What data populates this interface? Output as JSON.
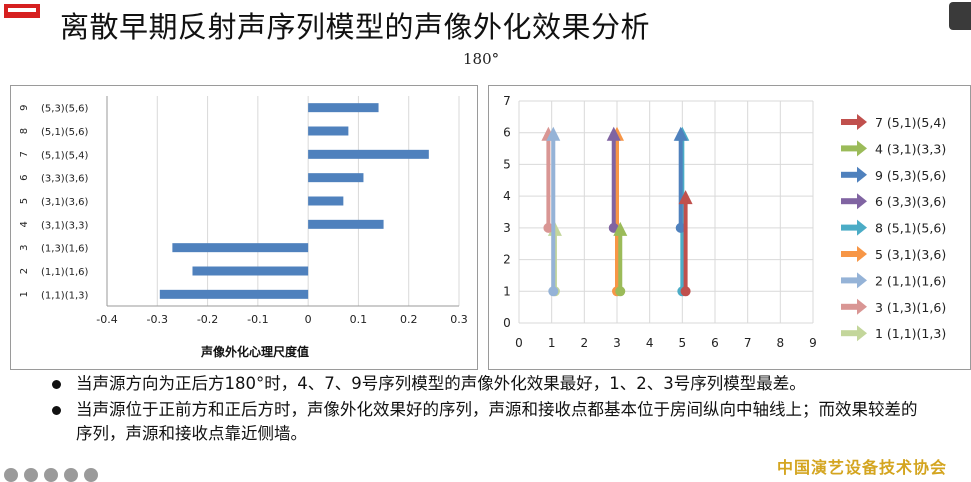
{
  "slide": {
    "title": "离散早期反射声序列模型的声像外化效果分析",
    "subtitle": "180°",
    "org": "中国演艺设备技术协会"
  },
  "bullets": [
    "当声源方向为正后方180°时，4、7、9号序列模型的声像外化效果最好，1、2、3号序列模型最差。",
    "当声源位于正前方和正后方时，声像外化效果好的序列，声源和接收点都基本位于房间纵向中轴线上；而效果较差的序列，声源和接收点靠近侧墙。"
  ],
  "colors": {
    "bar": "#4f81bd",
    "grid": "#d9d9d9",
    "org": "#d4a520"
  },
  "chart_data": [
    {
      "type": "bar",
      "orientation": "horizontal",
      "title": "",
      "xlabel": "声像外化心理尺度值",
      "ylabel": "",
      "xlim": [
        -0.4,
        0.3
      ],
      "xticks": [
        "-0.4",
        "-0.3",
        "-0.2",
        "-0.1",
        "0",
        "0.1",
        "0.2",
        "0.3"
      ],
      "categories": [
        {
          "num": "1",
          "label": "(1,1)(1,3)"
        },
        {
          "num": "2",
          "label": "(1,1)(1,6)"
        },
        {
          "num": "3",
          "label": "(1,3)(1,6)"
        },
        {
          "num": "4",
          "label": "(3,1)(3,3)"
        },
        {
          "num": "5",
          "label": "(3,1)(3,6)"
        },
        {
          "num": "6",
          "label": "(3,3)(3,6)"
        },
        {
          "num": "7",
          "label": "(5,1)(5,4)"
        },
        {
          "num": "8",
          "label": "(5,1)(5,6)"
        },
        {
          "num": "9",
          "label": "(5,3)(5,6)"
        }
      ],
      "values": [
        -0.295,
        -0.23,
        -0.27,
        0.15,
        0.07,
        0.11,
        0.24,
        0.08,
        0.14
      ]
    },
    {
      "type": "scatter",
      "title": "",
      "xlabel": "",
      "ylabel": "",
      "xlim": [
        0,
        9
      ],
      "ylim": [
        0,
        7
      ],
      "xticks": [
        "0",
        "1",
        "2",
        "3",
        "4",
        "5",
        "6",
        "7",
        "8",
        "9"
      ],
      "yticks": [
        "0",
        "1",
        "2",
        "3",
        "4",
        "5",
        "6",
        "7"
      ],
      "series": [
        {
          "name": "7 (5,1)(5,4)",
          "color": "#c0504d",
          "from": [
            5.1,
            1
          ],
          "to": [
            5.1,
            4
          ]
        },
        {
          "name": "4 (3,1)(3,3)",
          "color": "#9bbb59",
          "from": [
            3.1,
            1
          ],
          "to": [
            3.1,
            3
          ]
        },
        {
          "name": "9 (5,3)(5,6)",
          "color": "#4f81bd",
          "from": [
            4.95,
            3
          ],
          "to": [
            4.95,
            6
          ]
        },
        {
          "name": "6 (3,3)(3,6)",
          "color": "#8064a2",
          "from": [
            2.9,
            3
          ],
          "to": [
            2.9,
            6
          ]
        },
        {
          "name": "8 (5,1)(5,6)",
          "color": "#4bacc6",
          "from": [
            5.0,
            1
          ],
          "to": [
            5.0,
            6
          ]
        },
        {
          "name": "5 (3,1)(3,6)",
          "color": "#f79646",
          "from": [
            3.0,
            1
          ],
          "to": [
            3.0,
            6
          ]
        },
        {
          "name": "2 (1,1)(1,6)",
          "color": "#95b3d7",
          "from": [
            1.05,
            1
          ],
          "to": [
            1.05,
            6
          ]
        },
        {
          "name": "3 (1,3)(1,6)",
          "color": "#d99694",
          "from": [
            0.9,
            3
          ],
          "to": [
            0.9,
            6
          ]
        },
        {
          "name": "1 (1,1)(1,3)",
          "color": "#c3d69b",
          "from": [
            1.1,
            1
          ],
          "to": [
            1.1,
            3
          ]
        }
      ]
    }
  ]
}
